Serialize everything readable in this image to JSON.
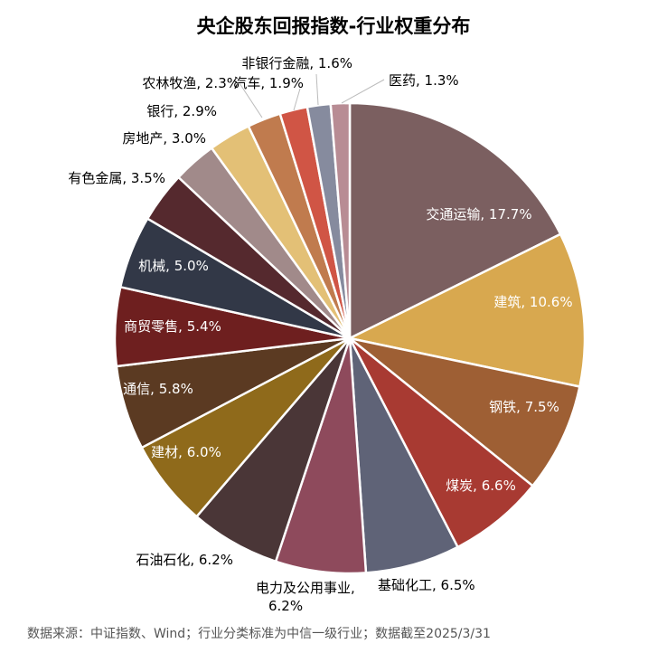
{
  "chart_data": {
    "type": "pie",
    "title": "央企股东回报指数-行业权重分布",
    "slices": [
      {
        "label": "交通运输",
        "value": 17.7,
        "text": "交通运输, 17.7%",
        "color": "#7b5f60"
      },
      {
        "label": "建筑",
        "value": 10.6,
        "text": "建筑, 10.6%",
        "color": "#d8a84f"
      },
      {
        "label": "钢铁",
        "value": 7.5,
        "text": "钢铁, 7.5%",
        "color": "#9e5f34"
      },
      {
        "label": "煤炭",
        "value": 6.6,
        "text": "煤炭, 6.6%",
        "color": "#a83a32"
      },
      {
        "label": "基础化工",
        "value": 6.5,
        "text": "基础化工, 6.5%",
        "color": "#5f6377"
      },
      {
        "label": "电力及公用事业",
        "value": 6.2,
        "text": "电力及公用事业, 6.2%",
        "color": "#8e4a5c"
      },
      {
        "label": "石油石化",
        "value": 6.2,
        "text": "石油石化, 6.2%",
        "color": "#4a3637"
      },
      {
        "label": "建材",
        "value": 6.0,
        "text": "建材, 6.0%",
        "color": "#8f6a1b"
      },
      {
        "label": "通信",
        "value": 5.8,
        "text": "通信, 5.8%",
        "color": "#5b3a22"
      },
      {
        "label": "商贸零售",
        "value": 5.4,
        "text": "商贸零售, 5.4%",
        "color": "#6e1f1f"
      },
      {
        "label": "机械",
        "value": 5.0,
        "text": "机械, 5.0%",
        "color": "#323847"
      },
      {
        "label": "有色金属",
        "value": 3.5,
        "text": "有色金属, 3.5%",
        "color": "#55292e"
      },
      {
        "label": "房地产",
        "value": 3.0,
        "text": "房地产, 3.0%",
        "color": "#a18a8a"
      },
      {
        "label": "银行",
        "value": 2.9,
        "text": "银行, 2.9%",
        "color": "#e3c076"
      },
      {
        "label": "农林牧渔",
        "value": 2.3,
        "text": "农林牧渔, 2.3%",
        "color": "#c07b4e"
      },
      {
        "label": "汽车",
        "value": 1.9,
        "text": "汽车, 1.9%",
        "color": "#d05545"
      },
      {
        "label": "非银行金融",
        "value": 1.6,
        "text": "非银行金融, 1.6%",
        "color": "#868b9e"
      },
      {
        "label": "医药",
        "value": 1.3,
        "text": "医药, 1.3%",
        "color": "#b88c94"
      }
    ]
  },
  "footer": {
    "source": "数据来源：中证指数、Wind；行业分类标准为中信一级行业；数据截至2025/3/31"
  }
}
